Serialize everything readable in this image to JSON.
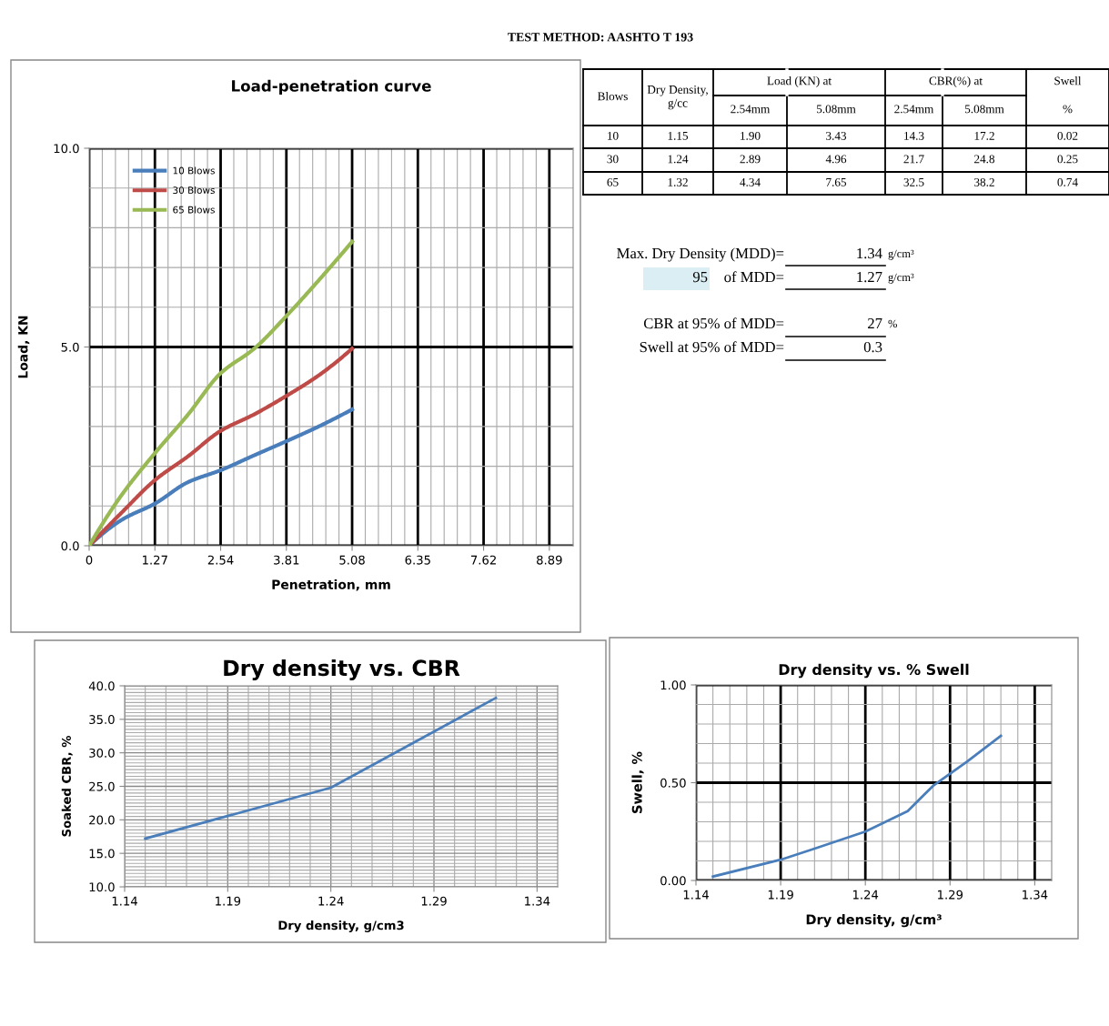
{
  "chart_data": [
    {
      "type": "line",
      "title": "Load-penetration curve",
      "xlabel": "Penetration, mm",
      "ylabel": "Load, KN",
      "x": [
        0,
        0.64,
        1.27,
        1.91,
        2.54,
        3.18,
        3.81,
        4.45,
        5.08
      ],
      "series": [
        {
          "name": "10 Blows",
          "color": "#4a7ebb",
          "values": [
            0,
            0.66,
            1.06,
            1.6,
            1.9,
            2.27,
            2.63,
            3.01,
            3.43
          ]
        },
        {
          "name": "30 Blows",
          "color": "#be4b48",
          "values": [
            0,
            0.85,
            1.65,
            2.25,
            2.89,
            3.3,
            3.77,
            4.3,
            4.96
          ]
        },
        {
          "name": "65 Blows",
          "color": "#98b954",
          "values": [
            0,
            1.3,
            2.33,
            3.3,
            4.34,
            4.95,
            5.78,
            6.7,
            7.65
          ]
        }
      ],
      "xlim": [
        0,
        9.35
      ],
      "xticks": [
        0,
        1.27,
        2.54,
        3.81,
        5.08,
        6.35,
        7.62,
        8.89
      ],
      "ylim": [
        0,
        10
      ],
      "yticks": [
        {
          "value": 0,
          "label": "0.0"
        },
        {
          "value": 5,
          "label": "5.0"
        },
        {
          "value": 10,
          "label": "10.0"
        }
      ],
      "grid": true,
      "legend": "top left",
      "marker": "none",
      "line_style": "solid"
    },
    {
      "type": "line",
      "title": "Dry density vs. CBR",
      "xlabel": "Dry density, g/cm3",
      "ylabel": "Soaked CBR, %",
      "x": [
        1.15,
        1.24,
        1.32
      ],
      "series": [
        {
          "color": "#4a7ebb",
          "values": [
            17.2,
            24.8,
            38.2
          ]
        }
      ],
      "xlim": [
        1.14,
        1.35
      ],
      "xticks": [
        1.14,
        1.19,
        1.24,
        1.29,
        1.34
      ],
      "ylim": [
        10,
        40
      ],
      "yticks": [
        {
          "value": 10,
          "label": "10.0"
        },
        {
          "value": 15,
          "label": "15.0"
        },
        {
          "value": 20,
          "label": "20.0"
        },
        {
          "value": 25,
          "label": "25.0"
        },
        {
          "value": 30,
          "label": "30.0"
        },
        {
          "value": 35,
          "label": "35.0"
        },
        {
          "value": 40,
          "label": "40.0"
        }
      ],
      "grid": true,
      "marker": "none",
      "line_style": "solid"
    },
    {
      "type": "line",
      "title": "Dry density vs. % Swell",
      "xlabel": "Dry density, g/cm³",
      "ylabel": "Swell, %",
      "x": [
        1.15,
        1.19,
        1.21,
        1.24,
        1.265,
        1.28,
        1.3,
        1.32
      ],
      "series": [
        {
          "color": "#4a7ebb",
          "values": [
            0.02,
            0.106,
            0.163,
            0.25,
            0.355,
            0.484,
            0.608,
            0.74
          ]
        }
      ],
      "xlim": [
        1.14,
        1.35
      ],
      "xticks": [
        1.14,
        1.19,
        1.24,
        1.29,
        1.34
      ],
      "ylim": [
        0,
        1
      ],
      "yticks": [
        {
          "value": 0,
          "label": "0.00"
        },
        {
          "value": 0.5,
          "label": "0.50"
        },
        {
          "value": 1,
          "label": "1.00"
        }
      ],
      "grid": true,
      "marker": "none",
      "line_style": "solid"
    },
    {
      "type": "other",
      "title": "TEST METHOD: AASHTO T 193",
      "annotations": [
        "Blows",
        "Dry Density, g/cc",
        "Load (KN) at",
        "CBR(%) at",
        "Swell",
        "2.54mm",
        "5.08mm",
        "2.54mm",
        "5.08mm",
        "%",
        "10",
        "1.15",
        "1.90",
        "3.43",
        "14.3",
        "17.2",
        "0.02",
        "30",
        "1.24",
        "2.89",
        "4.96",
        "21.7",
        "24.8",
        "0.25",
        "65",
        "1.32",
        "4.34",
        "7.65",
        "32.5",
        "38.2",
        "0.74",
        "Max. Dry Density (MDD)=",
        "1.34",
        "g/cm³",
        "95",
        "of MDD=",
        "1.27",
        "g/cm³",
        "CBR at 95% of MDD=",
        "27",
        "%",
        "Swell at 95% of MDD=",
        "0.3"
      ]
    }
  ]
}
